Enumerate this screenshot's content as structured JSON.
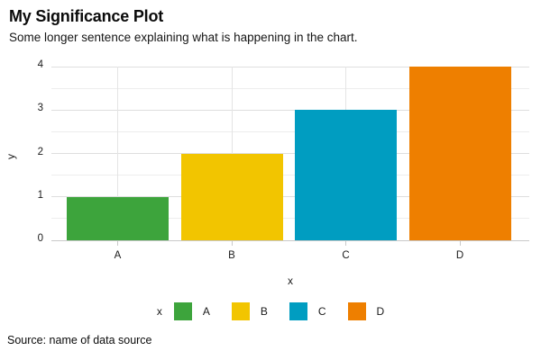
{
  "header": {
    "title": "My Significance Plot",
    "subtitle": "Some longer sentence explaining what is happening in the chart."
  },
  "footer": {
    "source": "Source: name of data source"
  },
  "chart_data": {
    "type": "bar",
    "title": "My Significance Plot",
    "subtitle": "Some longer sentence explaining what is happening in the chart.",
    "categories": [
      "A",
      "B",
      "C",
      "D"
    ],
    "values": [
      1,
      2,
      3,
      4
    ],
    "colors": [
      "#3da43c",
      "#f2c500",
      "#009dc1",
      "#ee7f00"
    ],
    "xlabel": "x",
    "ylabel": "y",
    "ylim": [
      0,
      4
    ],
    "yticks": [
      0,
      1,
      2,
      3,
      4
    ],
    "minor_tick_step": 0.5,
    "grid": "on",
    "legend": {
      "position": "bottom",
      "title": "x",
      "entries": [
        {
          "label": "A",
          "color": "#3da43c"
        },
        {
          "label": "B",
          "color": "#f2c500"
        },
        {
          "label": "C",
          "color": "#009dc1"
        },
        {
          "label": "D",
          "color": "#ee7f00"
        }
      ]
    },
    "source": "Source: name of data source"
  }
}
